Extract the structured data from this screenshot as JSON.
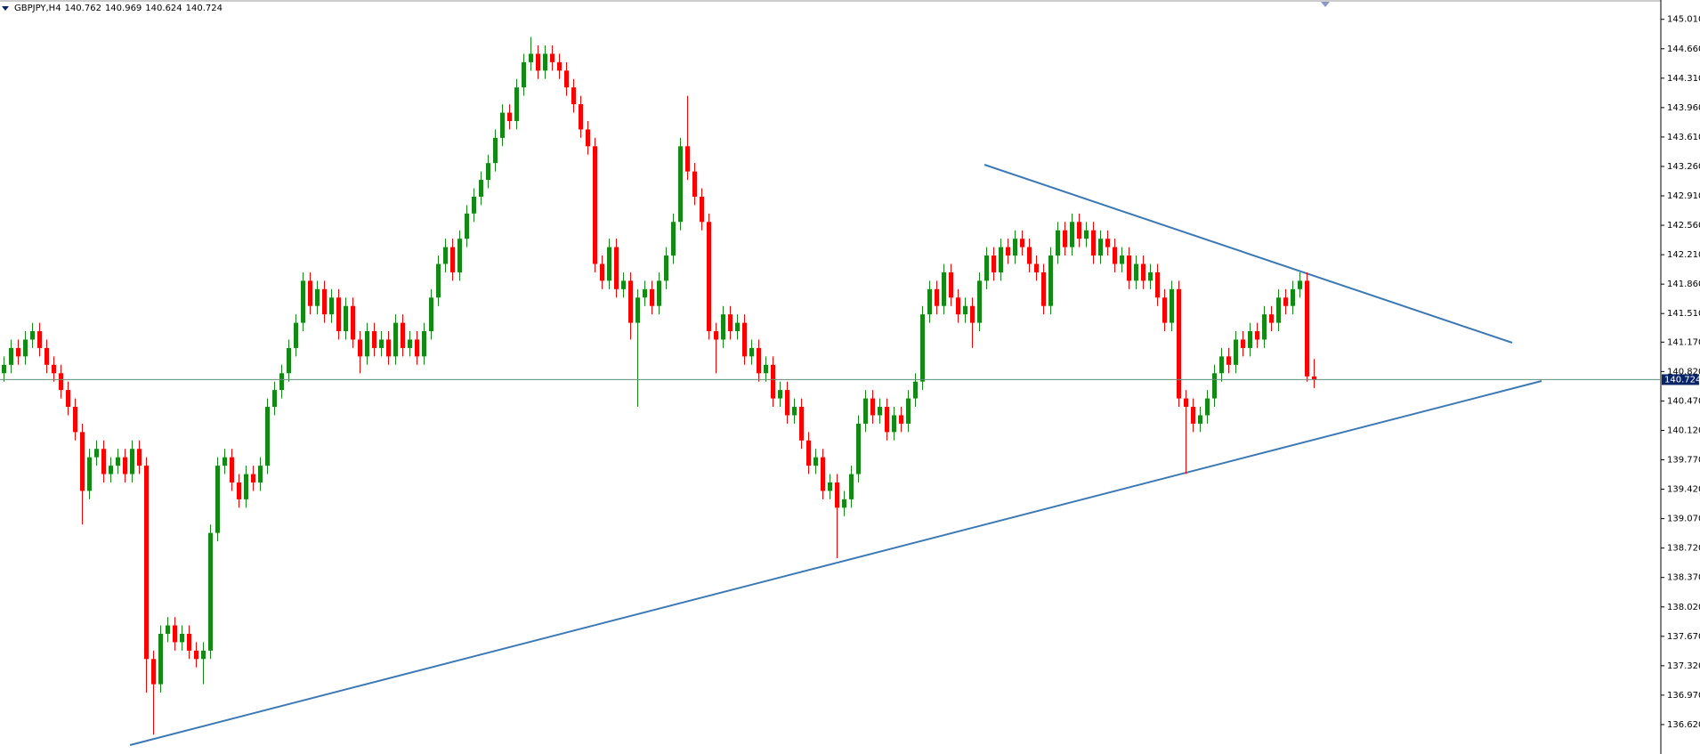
{
  "chart_data": {
    "type": "candlestick",
    "title": "GBPJPY,H4",
    "up_color": "#138a13",
    "down_color": "#ff0000",
    "price_line_color": "#5f8f7a",
    "price_box_color": "#0a246a",
    "grid": false,
    "ylim": [
      136.27,
      145.24
    ],
    "yticks": [
      {
        "value": 145.01,
        "label": "145.010"
      },
      {
        "value": 144.66,
        "label": "144.660"
      },
      {
        "value": 144.31,
        "label": "144.310"
      },
      {
        "value": 143.96,
        "label": "143.960"
      },
      {
        "value": 143.61,
        "label": "143.610"
      },
      {
        "value": 143.26,
        "label": "143.260"
      },
      {
        "value": 142.91,
        "label": "142.910"
      },
      {
        "value": 142.56,
        "label": "142.560"
      },
      {
        "value": 142.21,
        "label": "142.210"
      },
      {
        "value": 141.86,
        "label": "141.860"
      },
      {
        "value": 141.51,
        "label": "141.510"
      },
      {
        "value": 141.17,
        "label": "141.170"
      },
      {
        "value": 140.82,
        "label": "140.820"
      },
      {
        "value": 140.47,
        "label": "140.470"
      },
      {
        "value": 140.12,
        "label": "140.120"
      },
      {
        "value": 139.77,
        "label": "139.770"
      },
      {
        "value": 139.42,
        "label": "139.420"
      },
      {
        "value": 139.07,
        "label": "139.070"
      },
      {
        "value": 138.72,
        "label": "138.720"
      },
      {
        "value": 138.37,
        "label": "138.370"
      },
      {
        "value": 138.02,
        "label": "138.020"
      },
      {
        "value": 137.67,
        "label": "137.670"
      },
      {
        "value": 137.32,
        "label": "137.320"
      },
      {
        "value": 136.97,
        "label": "136.970"
      },
      {
        "value": 136.62,
        "label": "136.620"
      }
    ],
    "open": [
      140.8,
      140.9,
      141.1,
      141.0,
      141.2,
      141.3,
      141.1,
      140.9,
      140.8,
      140.6,
      140.4,
      140.1,
      139.4,
      139.8,
      139.9,
      139.6,
      139.7,
      139.8,
      139.6,
      139.9,
      139.7,
      137.4,
      137.1,
      137.7,
      137.8,
      137.6,
      137.7,
      137.5,
      137.4,
      137.5,
      138.9,
      139.7,
      139.8,
      139.5,
      139.3,
      139.6,
      139.5,
      139.7,
      140.4,
      140.6,
      140.8,
      141.1,
      141.4,
      141.9,
      141.6,
      141.8,
      141.5,
      141.7,
      141.3,
      141.6,
      141.2,
      141.0,
      141.3,
      141.1,
      141.2,
      141.0,
      141.4,
      141.1,
      141.2,
      141.0,
      141.3,
      141.7,
      142.1,
      142.3,
      142.0,
      142.4,
      142.7,
      142.9,
      143.1,
      143.3,
      143.6,
      143.9,
      143.8,
      144.2,
      144.5,
      144.6,
      144.4,
      144.6,
      144.5,
      144.4,
      144.2,
      144.0,
      143.7,
      143.5,
      142.1,
      141.9,
      142.3,
      141.8,
      141.9,
      141.4,
      141.7,
      141.8,
      141.6,
      141.9,
      142.2,
      142.6,
      143.5,
      143.2,
      142.9,
      142.6,
      141.3,
      141.2,
      141.5,
      141.3,
      141.4,
      141.0,
      141.1,
      140.8,
      140.9,
      140.5,
      140.6,
      140.3,
      140.4,
      140.0,
      139.7,
      139.8,
      139.4,
      139.5,
      139.2,
      139.3,
      139.6,
      140.2,
      140.5,
      140.3,
      140.4,
      140.1,
      140.3,
      140.2,
      140.5,
      140.7,
      141.5,
      141.8,
      141.6,
      142.0,
      141.7,
      141.5,
      141.6,
      141.4,
      141.9,
      142.2,
      142.0,
      142.3,
      142.2,
      142.4,
      142.3,
      142.1,
      142.0,
      141.6,
      142.2,
      142.5,
      142.3,
      142.6,
      142.4,
      142.5,
      142.2,
      142.4,
      142.3,
      142.1,
      142.2,
      141.9,
      142.1,
      141.9,
      142.0,
      141.7,
      141.4,
      141.8,
      140.5,
      140.4,
      140.2,
      140.3,
      140.5,
      140.8,
      141.0,
      140.9,
      141.2,
      141.1,
      141.3,
      141.2,
      141.5,
      141.4,
      141.7,
      141.6,
      141.8,
      141.9,
      140.762
    ],
    "high": [
      141.0,
      141.2,
      141.2,
      141.3,
      141.4,
      141.4,
      141.2,
      141.0,
      140.9,
      140.7,
      140.5,
      140.2,
      139.9,
      140.0,
      140.0,
      139.8,
      139.9,
      139.9,
      140.0,
      140.0,
      139.8,
      137.5,
      137.8,
      137.9,
      137.9,
      137.8,
      137.8,
      137.6,
      137.6,
      139.0,
      139.8,
      139.9,
      139.9,
      139.6,
      139.7,
      139.7,
      139.8,
      140.5,
      140.7,
      140.9,
      141.2,
      141.5,
      142.0,
      142.0,
      141.9,
      141.9,
      141.8,
      141.8,
      141.7,
      141.7,
      141.3,
      141.4,
      141.4,
      141.3,
      141.3,
      141.5,
      141.5,
      141.3,
      141.3,
      141.4,
      141.8,
      142.2,
      142.4,
      142.4,
      142.5,
      142.8,
      143.0,
      143.2,
      143.4,
      143.7,
      144.0,
      144.0,
      144.3,
      144.6,
      144.8,
      144.7,
      144.7,
      144.7,
      144.6,
      144.5,
      144.3,
      144.1,
      143.8,
      143.6,
      142.2,
      142.4,
      142.4,
      142.0,
      142.0,
      141.8,
      141.9,
      141.9,
      142.0,
      142.3,
      142.7,
      143.6,
      144.1,
      143.3,
      143.0,
      142.7,
      141.4,
      141.6,
      141.6,
      141.5,
      141.5,
      141.2,
      141.2,
      141.0,
      141.0,
      140.7,
      140.7,
      140.5,
      140.5,
      140.1,
      139.9,
      139.9,
      139.6,
      139.6,
      139.4,
      139.7,
      140.3,
      140.6,
      140.6,
      140.5,
      140.5,
      140.4,
      140.4,
      140.6,
      140.8,
      141.6,
      141.9,
      141.9,
      142.1,
      142.1,
      141.8,
      141.7,
      141.7,
      142.0,
      142.3,
      142.3,
      142.4,
      142.4,
      142.5,
      142.5,
      142.4,
      142.2,
      142.1,
      142.3,
      142.6,
      142.6,
      142.7,
      142.7,
      142.6,
      142.6,
      142.5,
      142.5,
      142.4,
      142.3,
      142.3,
      142.2,
      142.2,
      142.1,
      142.1,
      141.8,
      141.9,
      141.9,
      140.6,
      140.5,
      140.4,
      140.6,
      140.9,
      141.1,
      141.1,
      141.3,
      141.3,
      141.4,
      141.4,
      141.6,
      141.6,
      141.8,
      141.8,
      141.9,
      142.0,
      142.0,
      140.969
    ],
    "low": [
      140.7,
      140.8,
      140.9,
      140.9,
      141.1,
      141.0,
      140.8,
      140.7,
      140.5,
      140.3,
      140.0,
      139.0,
      139.3,
      139.7,
      139.5,
      139.5,
      139.6,
      139.5,
      139.5,
      139.6,
      137.0,
      136.5,
      137.0,
      137.6,
      137.5,
      137.5,
      137.4,
      137.3,
      137.1,
      137.4,
      138.8,
      139.6,
      139.4,
      139.2,
      139.2,
      139.4,
      139.4,
      139.6,
      140.3,
      140.5,
      140.7,
      141.0,
      141.3,
      141.5,
      141.5,
      141.4,
      141.4,
      141.2,
      141.2,
      141.1,
      140.8,
      140.9,
      141.0,
      141.0,
      140.9,
      140.9,
      141.0,
      141.0,
      140.9,
      140.9,
      141.2,
      141.6,
      142.0,
      141.9,
      141.9,
      142.3,
      142.6,
      142.8,
      143.0,
      143.2,
      143.5,
      143.7,
      143.7,
      144.1,
      144.4,
      144.3,
      144.3,
      144.4,
      144.3,
      144.1,
      143.9,
      143.6,
      143.4,
      142.0,
      141.8,
      141.8,
      141.7,
      141.7,
      141.2,
      140.4,
      141.6,
      141.5,
      141.5,
      141.8,
      142.1,
      142.5,
      143.1,
      142.8,
      142.5,
      141.2,
      140.8,
      141.1,
      141.2,
      141.2,
      140.9,
      140.9,
      140.7,
      140.7,
      140.4,
      140.4,
      140.2,
      140.2,
      139.9,
      139.6,
      139.6,
      139.3,
      139.3,
      138.6,
      139.1,
      139.2,
      139.5,
      140.1,
      140.2,
      140.2,
      140.0,
      140.0,
      140.1,
      140.1,
      140.4,
      140.6,
      141.4,
      141.5,
      141.5,
      141.6,
      141.4,
      141.4,
      141.1,
      141.3,
      141.8,
      141.9,
      141.9,
      142.1,
      142.1,
      142.2,
      142.0,
      141.9,
      141.5,
      141.5,
      142.1,
      142.2,
      142.2,
      142.3,
      142.3,
      142.1,
      142.1,
      142.2,
      142.0,
      142.0,
      141.8,
      141.8,
      141.8,
      141.8,
      141.6,
      141.3,
      141.3,
      140.4,
      139.6,
      140.1,
      140.1,
      140.2,
      140.4,
      140.7,
      140.8,
      140.8,
      141.0,
      141.0,
      141.1,
      141.1,
      141.3,
      141.3,
      141.5,
      141.5,
      141.7,
      140.7,
      140.624
    ],
    "close": [
      140.9,
      141.1,
      141.0,
      141.2,
      141.3,
      141.1,
      140.9,
      140.8,
      140.6,
      140.4,
      140.1,
      139.4,
      139.8,
      139.9,
      139.6,
      139.7,
      139.8,
      139.6,
      139.9,
      139.7,
      137.4,
      137.1,
      137.7,
      137.8,
      137.6,
      137.7,
      137.5,
      137.4,
      137.5,
      138.9,
      139.7,
      139.8,
      139.5,
      139.3,
      139.6,
      139.5,
      139.7,
      140.4,
      140.6,
      140.8,
      141.1,
      141.4,
      141.9,
      141.6,
      141.8,
      141.5,
      141.7,
      141.3,
      141.6,
      141.2,
      141.0,
      141.3,
      141.1,
      141.2,
      141.0,
      141.4,
      141.1,
      141.2,
      141.0,
      141.3,
      141.7,
      142.1,
      142.3,
      142.0,
      142.4,
      142.7,
      142.9,
      143.1,
      143.3,
      143.6,
      143.9,
      143.8,
      144.2,
      144.5,
      144.6,
      144.4,
      144.6,
      144.5,
      144.4,
      144.2,
      144.0,
      143.7,
      143.5,
      142.1,
      141.9,
      142.3,
      141.8,
      141.9,
      141.4,
      141.7,
      141.8,
      141.6,
      141.9,
      142.2,
      142.6,
      143.5,
      143.2,
      142.9,
      142.6,
      141.3,
      141.2,
      141.5,
      141.3,
      141.4,
      141.0,
      141.1,
      140.8,
      140.9,
      140.5,
      140.6,
      140.3,
      140.4,
      140.0,
      139.7,
      139.8,
      139.4,
      139.5,
      139.2,
      139.3,
      139.6,
      140.2,
      140.5,
      140.3,
      140.4,
      140.1,
      140.3,
      140.2,
      140.5,
      140.7,
      141.5,
      141.8,
      141.6,
      142.0,
      141.7,
      141.5,
      141.6,
      141.4,
      141.9,
      142.2,
      142.0,
      142.3,
      142.2,
      142.4,
      142.3,
      142.1,
      142.0,
      141.6,
      142.2,
      142.5,
      142.3,
      142.6,
      142.4,
      142.5,
      142.2,
      142.4,
      142.3,
      142.1,
      142.2,
      141.9,
      142.1,
      141.9,
      142.0,
      141.7,
      141.4,
      141.8,
      140.5,
      140.4,
      140.2,
      140.3,
      140.5,
      140.8,
      141.0,
      140.9,
      141.2,
      141.1,
      141.3,
      141.2,
      141.5,
      141.4,
      141.7,
      141.6,
      141.8,
      141.9,
      140.762,
      140.724
    ]
  }
}
